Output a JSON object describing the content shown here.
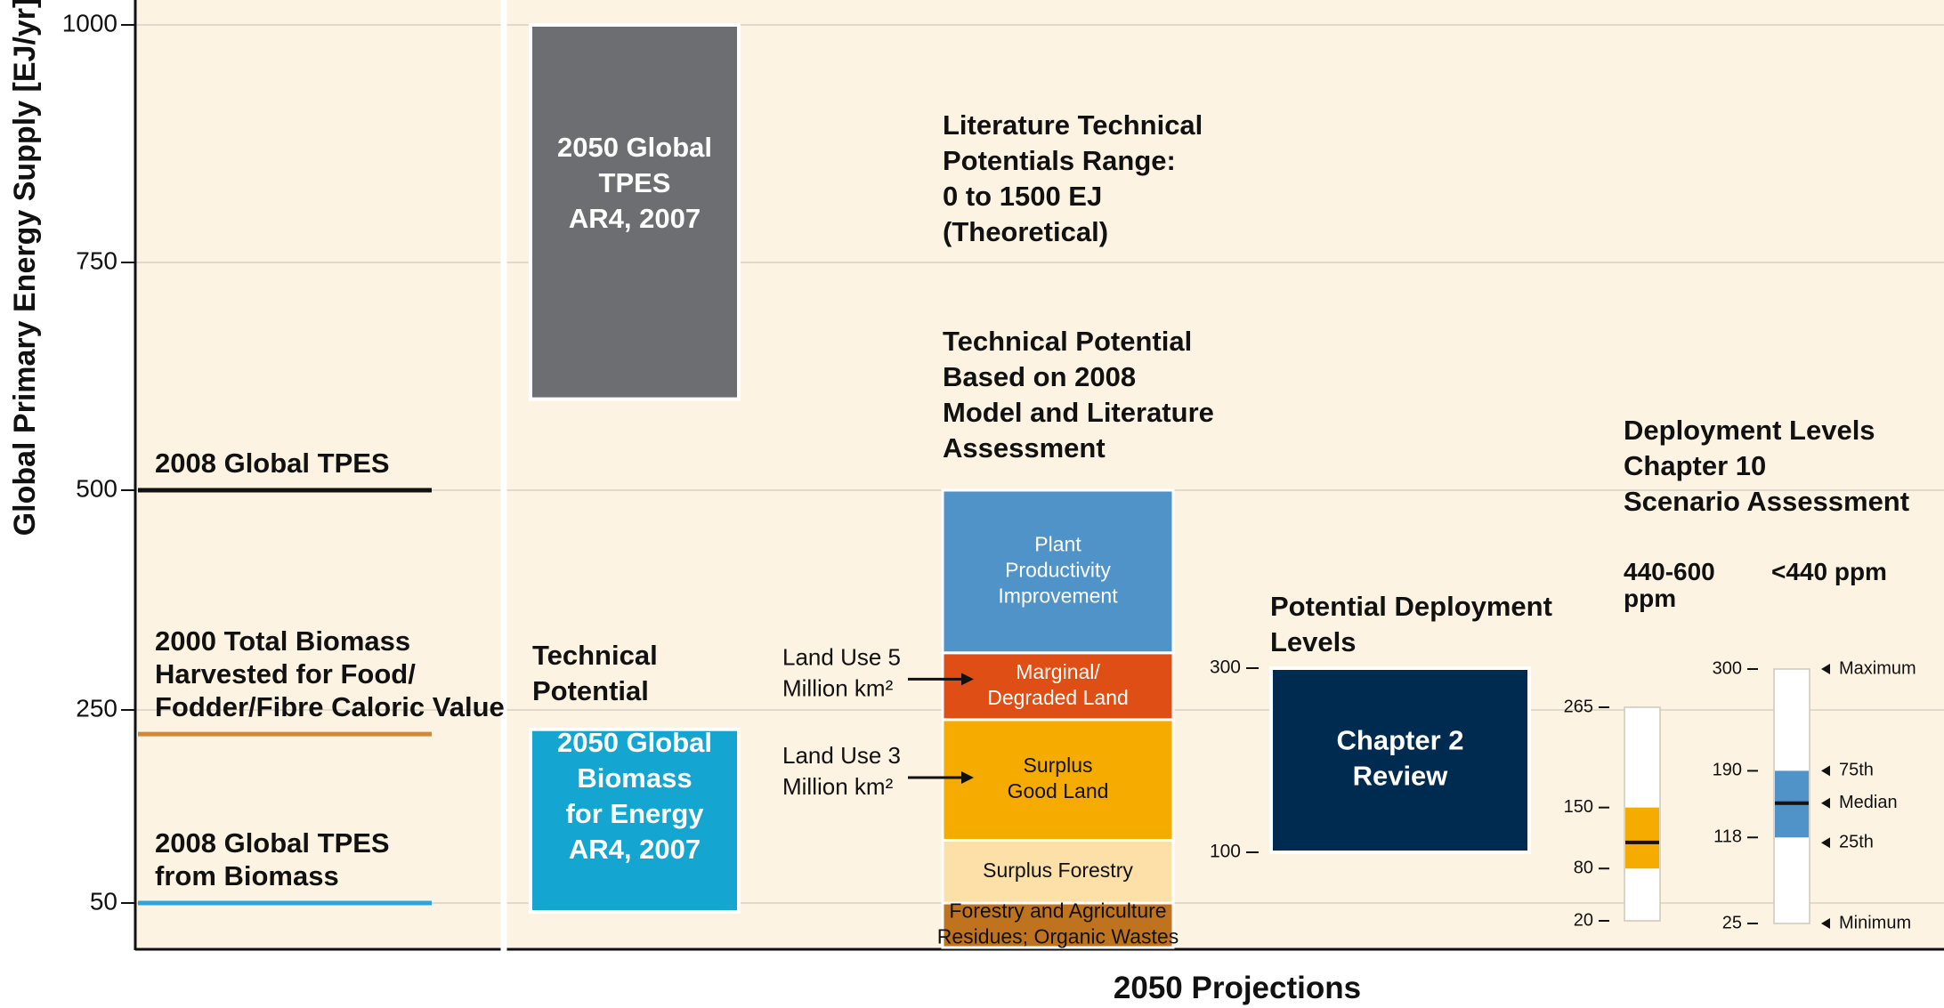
{
  "chart_data": {
    "type": "bar",
    "y_label": "Global Primary Energy Supply [EJ/yr]",
    "x_label": "2050 Projections",
    "y_ticks": [
      "1000",
      "750",
      "500",
      "250",
      "50"
    ],
    "reference_lines": [
      {
        "label_lines": [
          "2008 Global TPES"
        ],
        "value": 500,
        "color": "#111111"
      },
      {
        "label_lines": [
          "2000 Total Biomass",
          "Harvested for Food/",
          "Fodder/Fibre Caloric Value"
        ],
        "value": 225,
        "color": "#d2883a"
      },
      {
        "label_lines": [
          "2008 Global TPES",
          "from Biomass"
        ],
        "value": 50,
        "color": "#2ba3dc"
      }
    ],
    "ar4_bars": [
      {
        "label_lines": [
          "2050 Global",
          "TPES",
          "AR4, 2007"
        ],
        "low": 600,
        "high": 1000,
        "color": "#6d6e71"
      },
      {
        "label_lines": [
          "2050 Global",
          "Biomass",
          "for Energy",
          "AR4, 2007"
        ],
        "low": 40,
        "high": 230,
        "color": "#14a5d0"
      }
    ],
    "technical_potential_title": [
      "Technical",
      "Potential"
    ],
    "literature_range_label": [
      "Literature Technical",
      "Potentials Range:",
      "0 to 1500 EJ",
      "(Theoretical)"
    ],
    "stack_title": [
      "Technical Potential",
      "Based on 2008",
      "Model and Literature",
      "Assessment"
    ],
    "stack_segments": [
      {
        "label_lines": [
          "Forestry and Agriculture",
          "Residues; Organic Wastes"
        ],
        "low": 0,
        "high": 50,
        "color": "#c0731e",
        "text_color": "#111111"
      },
      {
        "label_lines": [
          "Surplus Forestry"
        ],
        "low": 50,
        "high": 115,
        "color": "#fddfa8",
        "text_color": "#111111"
      },
      {
        "label_lines": [
          "Surplus",
          "Good Land"
        ],
        "low": 115,
        "high": 240,
        "color": "#f6ab00",
        "text_color": "#111111"
      },
      {
        "label_lines": [
          "Marginal/",
          "Degraded Land"
        ],
        "low": 240,
        "high": 315,
        "color": "#df4e14",
        "text_color": "#ffffff"
      },
      {
        "label_lines": [
          "Plant",
          "Productivity",
          "Improvement"
        ],
        "low": 315,
        "high": 500,
        "color": "#4f93c9",
        "text_color": "#ffffff"
      }
    ],
    "land_use_arrows": [
      {
        "label_lines": [
          "Land Use 5",
          "Million km²"
        ],
        "value": 285
      },
      {
        "label_lines": [
          "Land Use 3",
          "Million km²"
        ],
        "value": 180
      }
    ],
    "potential_deployment": {
      "title_lines": [
        "Potential Deployment",
        "Levels"
      ],
      "box_lines": [
        "Chapter 2",
        "Review"
      ],
      "low": 100,
      "high": 300,
      "low_label": "100",
      "high_label": "300",
      "color": "#002b50"
    },
    "deployment_title": [
      "Deployment Levels",
      "Chapter 10",
      "Scenario Assessment"
    ],
    "scenarios": [
      {
        "name_lines": [
          "440-600",
          "ppm"
        ],
        "min": 20,
        "q25": 80,
        "median": 110,
        "q75": 150,
        "max": 265,
        "color": "#f6ab00",
        "tick_labels": [
          "265",
          "150",
          "80",
          "20"
        ]
      },
      {
        "name_lines": [
          "<440 ppm"
        ],
        "min": 25,
        "q25": 118,
        "median": 155,
        "q75": 190,
        "max": 300,
        "color": "#4f93c9",
        "tick_labels": [
          "300",
          "190",
          "118",
          "25"
        ]
      }
    ],
    "stat_labels": [
      "Maximum",
      "75th",
      "Median",
      "25th",
      "Minimum"
    ],
    "colors": {
      "background": "#fdf3e2",
      "grid": "#d8d2c5",
      "axis": "#111111"
    }
  }
}
